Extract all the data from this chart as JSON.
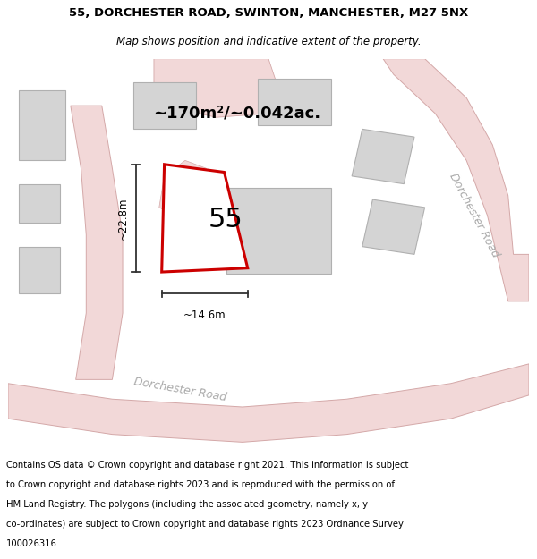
{
  "title_line1": "55, DORCHESTER ROAD, SWINTON, MANCHESTER, M27 5NX",
  "title_line2": "Map shows position and indicative extent of the property.",
  "footer_lines": [
    "Contains OS data © Crown copyright and database right 2021. This information is subject",
    "to Crown copyright and database rights 2023 and is reproduced with the permission of",
    "HM Land Registry. The polygons (including the associated geometry, namely x, y",
    "co-ordinates) are subject to Crown copyright and database rights 2023 Ordnance Survey",
    "100026316."
  ],
  "area_label": "~170m²/~0.042ac.",
  "width_label": "~14.6m",
  "height_label": "~22.8m",
  "property_number": "55",
  "map_bg": "#efefef",
  "road_fill": "#f2d8d8",
  "road_edge": "#d4a8a8",
  "building_fill": "#d4d4d4",
  "building_edge": "#b0b0b0",
  "highlight_color": "#cc0000",
  "highlight_fill": "#ffffff",
  "dim_color": "#333333",
  "road_label_color": "#aaaaaa",
  "title_fontsize": 9.5,
  "subtitle_fontsize": 8.5,
  "footer_fontsize": 7.2,
  "area_fontsize": 13,
  "number_fontsize": 22,
  "dim_fontsize": 8.5,
  "road_label_fontsize": 9
}
